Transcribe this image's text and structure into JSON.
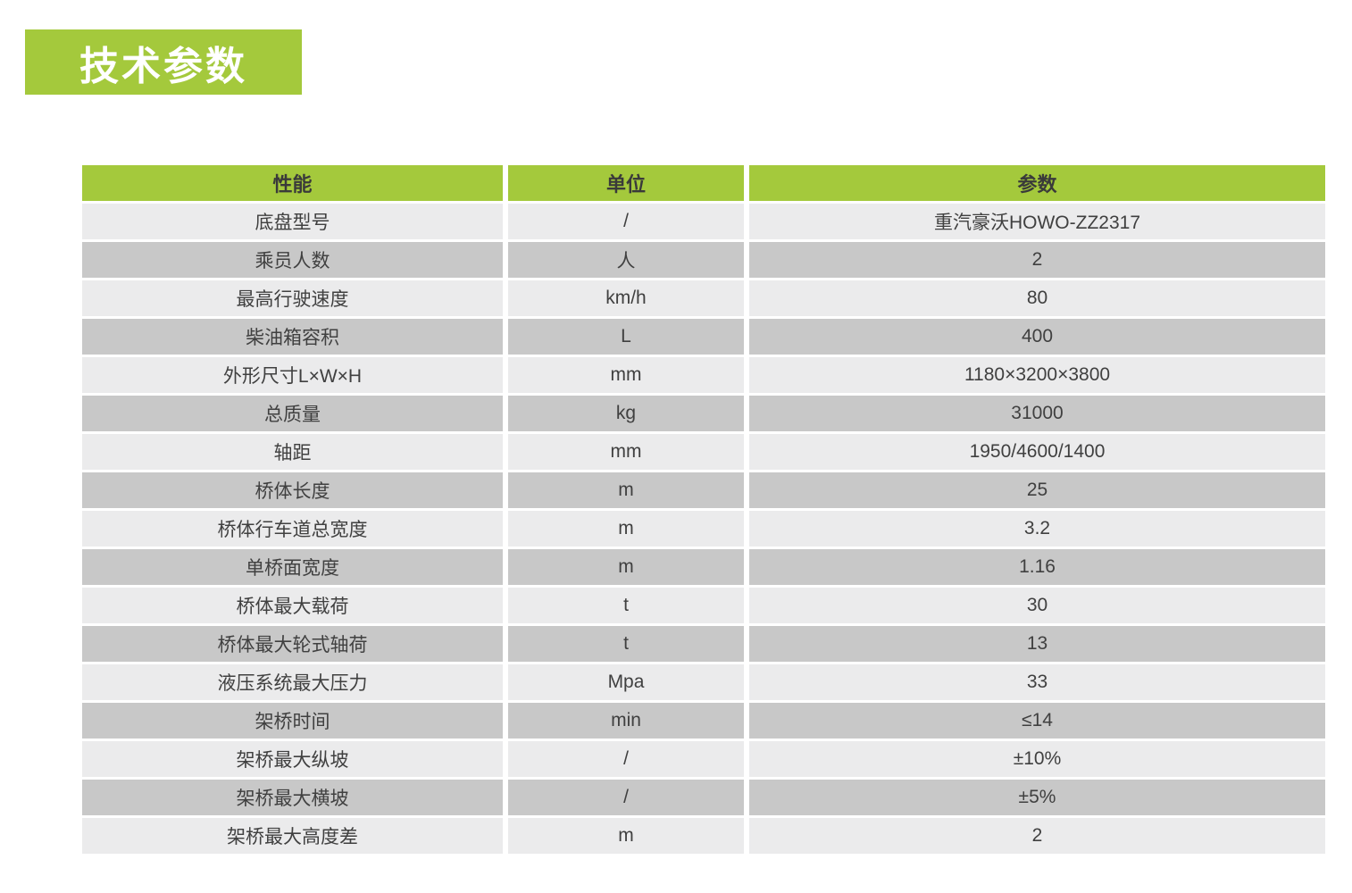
{
  "page_title": "技术参数",
  "colors": {
    "accent_green": "#a4c93c",
    "row_light": "#ebebec",
    "row_dark": "#c8c8c8",
    "header_text": "#3a3a3a",
    "cell_text": "#404040",
    "title_text": "#ffffff"
  },
  "table": {
    "headers": {
      "name": "性能",
      "unit": "单位",
      "value": "参数"
    },
    "rows": [
      {
        "name": "底盘型号",
        "unit": "/",
        "value": "重汽豪沃HOWO-ZZ2317"
      },
      {
        "name": "乘员人数",
        "unit": "人",
        "value": "2"
      },
      {
        "name": "最高行驶速度",
        "unit": "km/h",
        "value": "80"
      },
      {
        "name": "柴油箱容积",
        "unit": "L",
        "value": "400"
      },
      {
        "name": "外形尺寸L×W×H",
        "unit": "mm",
        "value": "1180×3200×3800"
      },
      {
        "name": "总质量",
        "unit": "kg",
        "value": "31000"
      },
      {
        "name": "轴距",
        "unit": "mm",
        "value": "1950/4600/1400"
      },
      {
        "name": "桥体长度",
        "unit": "m",
        "value": "25"
      },
      {
        "name": "桥体行车道总宽度",
        "unit": "m",
        "value": "3.2"
      },
      {
        "name": "单桥面宽度",
        "unit": "m",
        "value": "1.16"
      },
      {
        "name": "桥体最大载荷",
        "unit": "t",
        "value": "30"
      },
      {
        "name": "桥体最大轮式轴荷",
        "unit": "t",
        "value": "13"
      },
      {
        "name": "液压系统最大压力",
        "unit": "Mpa",
        "value": "33"
      },
      {
        "name": "架桥时间",
        "unit": "min",
        "value": "≤14"
      },
      {
        "name": "架桥最大纵坡",
        "unit": "/",
        "value": "±10%"
      },
      {
        "name": "架桥最大横坡",
        "unit": "/",
        "value": "±5%"
      },
      {
        "name": "架桥最大高度差",
        "unit": "m",
        "value": "2"
      }
    ]
  }
}
